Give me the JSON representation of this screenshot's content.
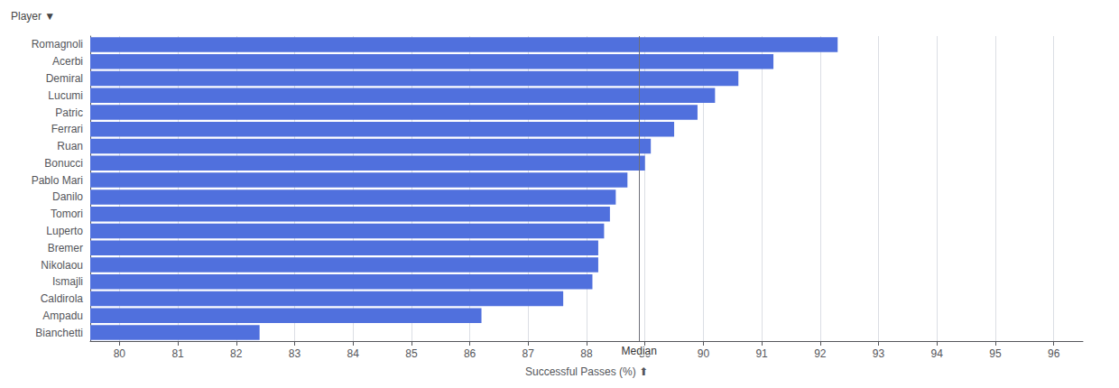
{
  "chart_data": {
    "type": "bar",
    "orientation": "horizontal",
    "categories": [
      "Romagnoli",
      "Acerbi",
      "Demiral",
      "Lucumi",
      "Patric",
      "Ferrari",
      "Ruan",
      "Bonucci",
      "Pablo Mari",
      "Danilo",
      "Tomori",
      "Luperto",
      "Bremer",
      "Nikolaou",
      "Ismajli",
      "Caldirola",
      "Ampadu",
      "Bianchetti"
    ],
    "values": [
      92.3,
      91.2,
      90.6,
      90.2,
      89.9,
      89.5,
      89.1,
      89.0,
      88.7,
      88.5,
      88.4,
      88.3,
      88.2,
      88.2,
      88.1,
      87.6,
      86.2,
      82.4
    ],
    "xlabel": "Successful Passes (%) ⬆",
    "ylabel": "Player ▼",
    "xlim": [
      79.5,
      96.5
    ],
    "xticks": [
      80,
      81,
      82,
      83,
      84,
      85,
      86,
      87,
      88,
      89,
      90,
      91,
      92,
      93,
      94,
      95,
      96
    ],
    "grid": true,
    "reference_lines": [
      {
        "value": 88.9,
        "label": "Median"
      }
    ]
  }
}
